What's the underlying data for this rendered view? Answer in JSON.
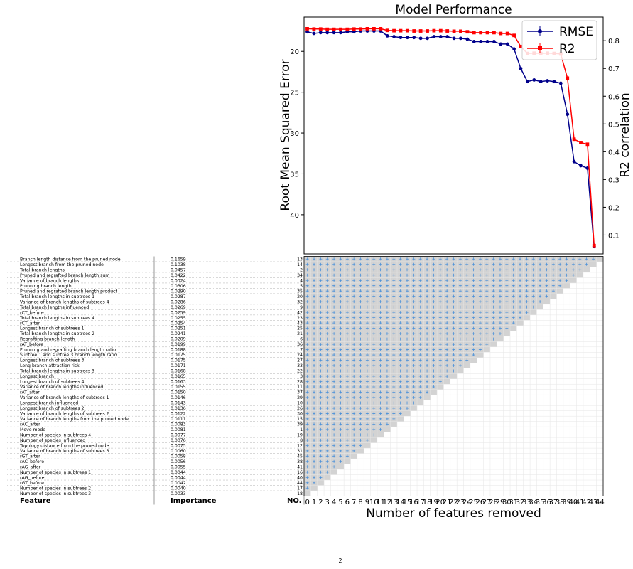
{
  "chart_data": [
    {
      "type": "line",
      "title": "Model Performance",
      "xlabel": "Number of features removed",
      "ylabel": "Root Mean Squared Error",
      "y2label": "R2 correlation",
      "ylim": [
        15.8,
        44.8
      ],
      "y_inverted": true,
      "y2lim": [
        0.032,
        0.885
      ],
      "xlim": [
        -0.5,
        44.5
      ],
      "yticks": [
        20,
        25,
        30,
        35,
        40
      ],
      "y2ticks": [
        0.1,
        0.2,
        0.3,
        0.4,
        0.5,
        0.6,
        0.7,
        0.8
      ],
      "legend": "top-right",
      "series": [
        {
          "name": "RMSE",
          "axis": "left",
          "color": "#00008b",
          "marker": "circle",
          "x": [
            0,
            1,
            2,
            3,
            4,
            5,
            6,
            7,
            8,
            9,
            10,
            11,
            12,
            13,
            14,
            15,
            16,
            17,
            18,
            19,
            20,
            21,
            22,
            23,
            24,
            25,
            26,
            27,
            28,
            29,
            30,
            31,
            32,
            33,
            34,
            35,
            36,
            37,
            38,
            39,
            40,
            41,
            42,
            43,
            44
          ],
          "values": [
            17.6,
            17.8,
            17.7,
            17.7,
            17.7,
            17.7,
            17.6,
            17.6,
            17.5,
            17.5,
            17.5,
            17.5,
            18.1,
            18.2,
            18.3,
            18.3,
            18.3,
            18.4,
            18.4,
            18.2,
            18.2,
            18.2,
            18.4,
            18.4,
            18.5,
            18.8,
            18.8,
            18.8,
            18.8,
            19.1,
            19.1,
            19.7,
            22.1,
            23.7,
            23.5,
            23.7,
            23.6,
            23.7,
            23.9,
            27.7,
            33.5,
            34.0,
            34.3,
            43.9,
            null
          ]
        },
        {
          "name": "R2",
          "axis": "right",
          "color": "#ff0000",
          "marker": "square",
          "x": [
            0,
            1,
            2,
            3,
            4,
            5,
            6,
            7,
            8,
            9,
            10,
            11,
            12,
            13,
            14,
            15,
            16,
            17,
            18,
            19,
            20,
            21,
            22,
            23,
            24,
            25,
            26,
            27,
            28,
            29,
            30,
            31,
            32,
            33,
            34,
            35,
            36,
            37,
            38,
            39,
            40,
            41,
            42,
            43,
            44
          ],
          "values": [
            0.843,
            0.842,
            0.842,
            0.841,
            0.841,
            0.841,
            0.841,
            0.842,
            0.842,
            0.843,
            0.843,
            0.843,
            0.837,
            0.836,
            0.836,
            0.836,
            0.835,
            0.835,
            0.835,
            0.836,
            0.836,
            0.835,
            0.834,
            0.834,
            0.832,
            0.829,
            0.829,
            0.829,
            0.829,
            0.826,
            0.826,
            0.819,
            0.779,
            0.754,
            0.755,
            0.754,
            0.755,
            0.754,
            0.752,
            0.665,
            0.445,
            0.433,
            0.427,
            0.062,
            null
          ]
        }
      ]
    },
    {
      "type": "table",
      "columns": [
        "Feature",
        "Importance",
        "NO."
      ],
      "rows": [
        [
          "Branch length distance from the pruned node",
          "0.1659",
          "13"
        ],
        [
          "Longest branch from the pruned node",
          "0.1038",
          "14"
        ],
        [
          "Total branch lengths",
          "0.0457",
          "2"
        ],
        [
          "Pruned and regrafted branch length sum",
          "0.0422",
          "34"
        ],
        [
          "Variance of branch lengths",
          "0.0324",
          "4"
        ],
        [
          "Prunning branch length",
          "0.0306",
          "5"
        ],
        [
          "Pruned and regrafted branch length product",
          "0.0290",
          "35"
        ],
        [
          "Total branch lengths in subtrees 1",
          "0.0287",
          "20"
        ],
        [
          "Variance of branch lengths of subtrees 4",
          "0.0286",
          "32"
        ],
        [
          "Total branch lengths influenced",
          "0.0269",
          "9"
        ],
        [
          "rCT_before",
          "0.0259",
          "42"
        ],
        [
          "Total branch lengths in subtrees 4",
          "0.0255",
          "23"
        ],
        [
          "rCT_after",
          "0.0254",
          "43"
        ],
        [
          "Longest branch of subtrees 1",
          "0.0251",
          "25"
        ],
        [
          "Total branch lengths in subtrees 2",
          "0.0241",
          "21"
        ],
        [
          "Regrafting branch length",
          "0.0209",
          "6"
        ],
        [
          "rAT_before",
          "0.0199",
          "36"
        ],
        [
          "Prunning and regrafting branch length ratio",
          "0.0188",
          "7"
        ],
        [
          "Subtree 1 and subtree 3 branch length ratio",
          "0.0175",
          "24"
        ],
        [
          "Longest branch of subtrees 3",
          "0.0175",
          "27"
        ],
        [
          "Long branch attraction risk",
          "0.0171",
          "33"
        ],
        [
          "Total branch lengths in subtrees 3",
          "0.0168",
          "22"
        ],
        [
          "Longest branch",
          "0.0165",
          "3"
        ],
        [
          "Longest branch of subtrees 4",
          "0.0163",
          "28"
        ],
        [
          "Variance of branch lengths influenced",
          "0.0155",
          "11"
        ],
        [
          "rAT_after",
          "0.0150",
          "37"
        ],
        [
          "Variance of branch lengths of subtrees 1",
          "0.0146",
          "29"
        ],
        [
          "Longest branch influenced",
          "0.0143",
          "10"
        ],
        [
          "Longest branch of subtrees 2",
          "0.0136",
          "26"
        ],
        [
          "Variance of branch lengths of subtrees 2",
          "0.0122",
          "30"
        ],
        [
          "Variance of branch lengths from the pruned node",
          "0.0111",
          "15"
        ],
        [
          "rAC_after",
          "0.0083",
          "39"
        ],
        [
          "Move mode",
          "0.0081",
          "1"
        ],
        [
          "Number of species in subtrees 4",
          "0.0077",
          "19"
        ],
        [
          "Number of species influenced",
          "0.0076",
          "8"
        ],
        [
          "Topology distance from the pruned node",
          "0.0075",
          "12"
        ],
        [
          "Variance of branch lengths of subtrees 3",
          "0.0060",
          "31"
        ],
        [
          "rGT_after",
          "0.0058",
          "45"
        ],
        [
          "rAC_before",
          "0.0056",
          "38"
        ],
        [
          "rAG_after",
          "0.0055",
          "41"
        ],
        [
          "Number of species in subtrees 1",
          "0.0044",
          "16"
        ],
        [
          "rAG_before",
          "0.0044",
          "40"
        ],
        [
          "rGT_before",
          "0.0042",
          "44"
        ],
        [
          "Number of species in subtrees 2",
          "0.0040",
          "17"
        ],
        [
          "Number of species in subtrees 3",
          "0.0033",
          "18"
        ]
      ],
      "grid_xticks": [
        "0",
        "1",
        "2",
        "3",
        "4",
        "5",
        "6",
        "7",
        "8",
        "9",
        "10",
        "11",
        "12",
        "13",
        "14",
        "15",
        "16",
        "17",
        "18",
        "19",
        "20",
        "21",
        "22",
        "23",
        "24",
        "25",
        "26",
        "27",
        "28",
        "29",
        "30",
        "31",
        "32",
        "33",
        "34",
        "35",
        "36",
        "37",
        "38",
        "39",
        "40",
        "41",
        "42",
        "43",
        "44"
      ],
      "grid_xlabel": "Number of features removed",
      "grid_fill_color": "#d3d3d3",
      "grid_marker_color": "#4a90d9"
    }
  ],
  "footer_glyph": "2"
}
